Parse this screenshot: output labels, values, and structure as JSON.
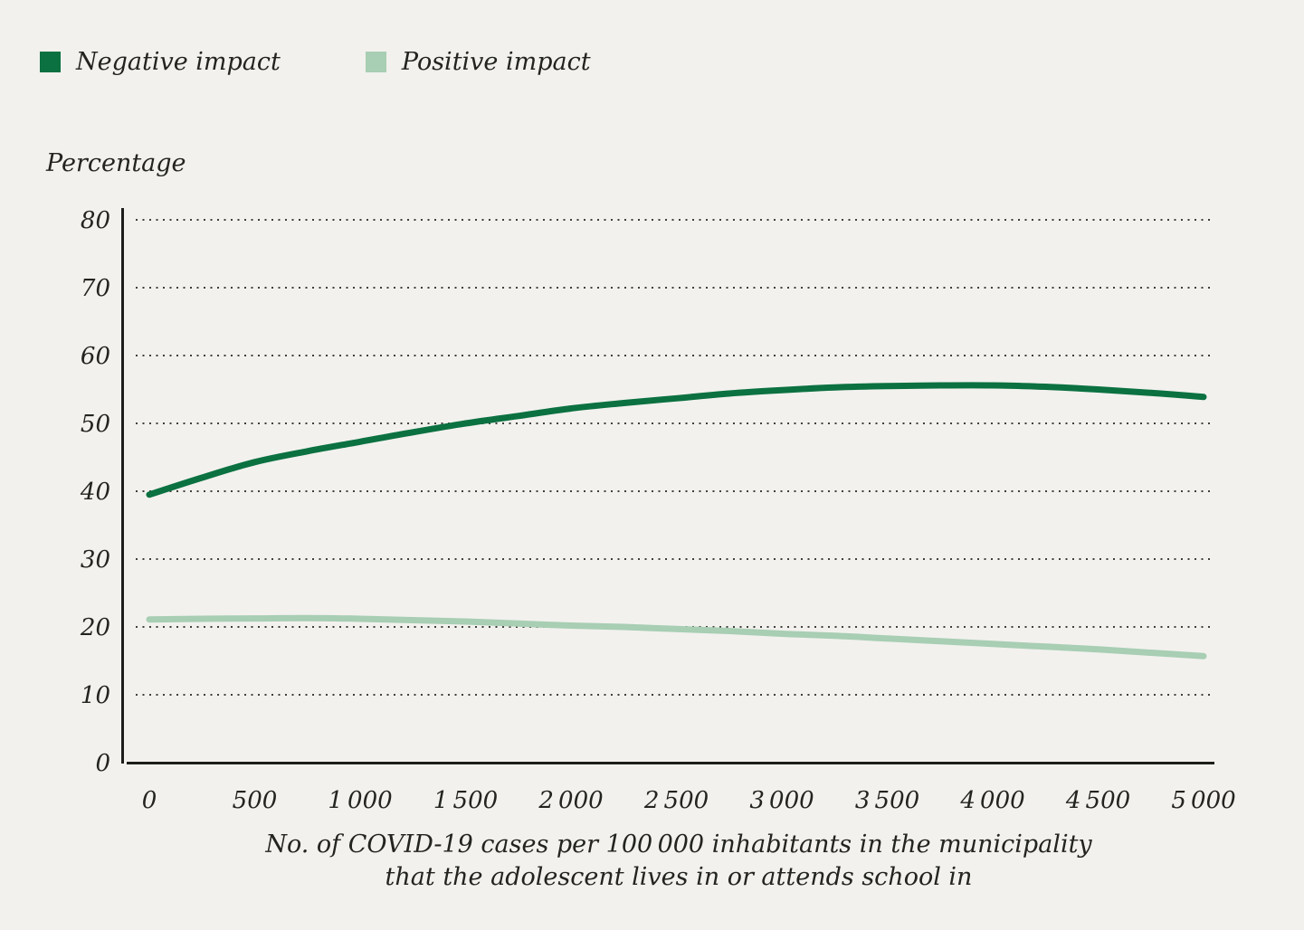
{
  "page": {
    "background_color": "#f2f1ee",
    "text_color": "#232320",
    "axis_color": "#1d1d1b",
    "gridline_color": "#3f3f3c"
  },
  "legend": {
    "items": [
      {
        "label": "Negative impact",
        "color": "#0b7140"
      },
      {
        "label": "Positive impact",
        "color": "#a8ceb3"
      }
    ]
  },
  "chart_data": {
    "type": "line",
    "title": "",
    "ylabel": "Percentage",
    "xlabel_line1": "No. of COVID-19 cases per 100 000 inhabitants in the municipality",
    "xlabel_line2": "that the adolescent lives in or attends school in",
    "xlim": [
      0,
      5000
    ],
    "ylim": [
      0,
      80
    ],
    "x_ticks": [
      0,
      500,
      1000,
      1500,
      2000,
      2500,
      3000,
      3500,
      4000,
      4500,
      5000
    ],
    "x_tick_labels": [
      "0",
      "500",
      "1 000",
      "1 500",
      "2 000",
      "2 500",
      "3 000",
      "3 500",
      "4 000",
      "4 500",
      "5 000"
    ],
    "y_ticks": [
      0,
      10,
      20,
      30,
      40,
      50,
      60,
      70,
      80
    ],
    "grid": "horizontal dotted lines at each y tick (10-80)",
    "legend_position": "top-left",
    "x": [
      0,
      250,
      500,
      750,
      1000,
      1250,
      1500,
      1750,
      2000,
      2250,
      2500,
      2750,
      3000,
      3250,
      3500,
      3750,
      4000,
      4250,
      4500,
      4750,
      5000
    ],
    "series": [
      {
        "name": "Negative impact",
        "color": "#0b7140",
        "values": [
          39.5,
          42.0,
          44.3,
          45.9,
          47.3,
          48.7,
          50.0,
          51.1,
          52.2,
          53.0,
          53.7,
          54.4,
          54.9,
          55.3,
          55.5,
          55.6,
          55.6,
          55.4,
          55.0,
          54.5,
          53.9
        ]
      },
      {
        "name": "Positive impact",
        "color": "#a8ceb3",
        "values": [
          21.1,
          21.2,
          21.25,
          21.3,
          21.2,
          21.0,
          20.8,
          20.5,
          20.2,
          20.0,
          19.7,
          19.4,
          19.0,
          18.7,
          18.3,
          17.9,
          17.5,
          17.1,
          16.7,
          16.2,
          15.7
        ]
      }
    ]
  }
}
